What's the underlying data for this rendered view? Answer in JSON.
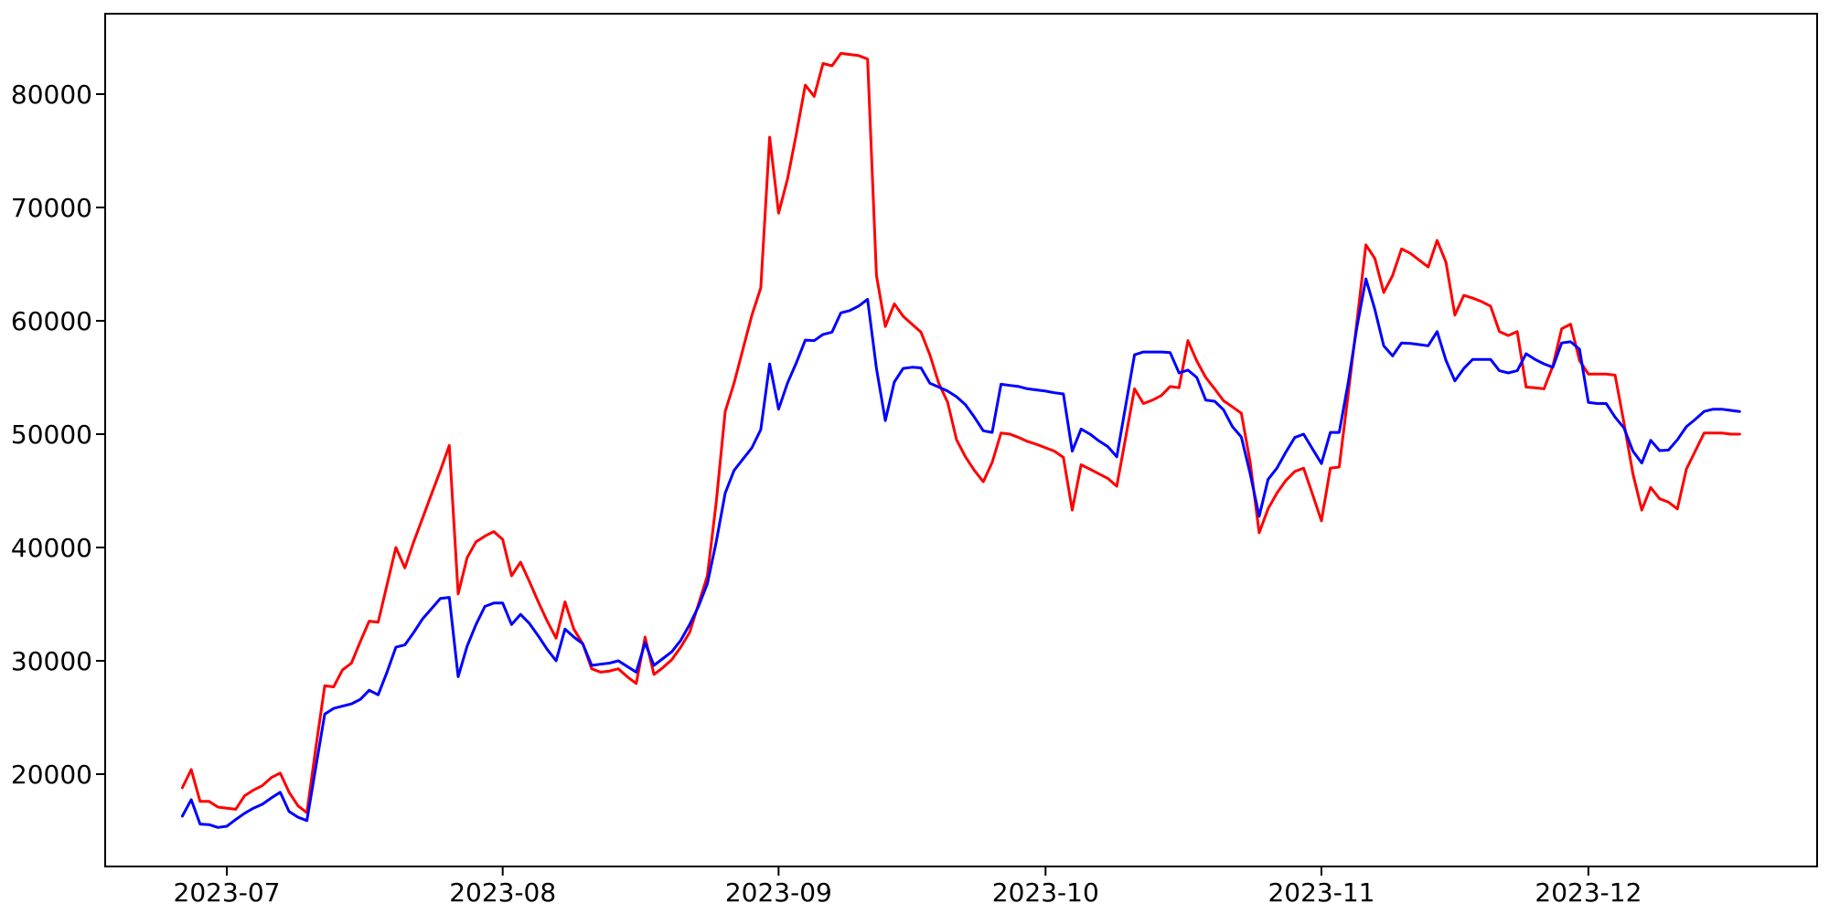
{
  "figure": {
    "background_color": "#ffffff",
    "spine_color": "#000000",
    "tick_label_color": "#000000"
  },
  "chart_data": {
    "type": "line",
    "title": "",
    "xlabel": "",
    "ylabel": "",
    "grid": false,
    "legend": "none",
    "x_start_date": "2023-06-26",
    "x_end_date": "2023-12-18",
    "x_frequency": "daily",
    "num_points": 176,
    "xlim_days_rel_start": [
      -8.67,
      183.7
    ],
    "ylim": [
      11855,
      87097
    ],
    "x_axis": {
      "tick_labels": [
        "2023-07",
        "2023-08",
        "2023-09",
        "2023-10",
        "2023-11",
        "2023-12"
      ],
      "tick_day_offsets": [
        5,
        36,
        67,
        97,
        128,
        158
      ]
    },
    "y_axis": {
      "tick_labels": [
        "20000",
        "30000",
        "40000",
        "50000",
        "60000",
        "70000",
        "80000"
      ],
      "tick_values": [
        20000,
        30000,
        40000,
        50000,
        60000,
        70000,
        80000
      ]
    },
    "series": [
      {
        "name": "red",
        "color": "#ff0000",
        "line_width": 3,
        "values": [
          18800,
          20400,
          17600,
          17600,
          17100,
          17000,
          16900,
          18100,
          18600,
          19000,
          19700,
          20100,
          18400,
          17200,
          16600,
          22300,
          27800,
          27700,
          29200,
          29800,
          31700,
          33500,
          33400,
          36700,
          40000,
          38200,
          40500,
          42600,
          44700,
          46800,
          49000,
          35900,
          39100,
          40500,
          41000,
          41400,
          40700,
          37500,
          38700,
          37000,
          35200,
          33500,
          32000,
          35200,
          32800,
          31500,
          29300,
          29000,
          29100,
          29300,
          28600,
          28000,
          32100,
          28800,
          29400,
          30100,
          31200,
          32500,
          35000,
          37500,
          44000,
          52000,
          54500,
          57500,
          60500,
          62900,
          76200,
          69500,
          72500,
          76500,
          80800,
          79800,
          82700,
          82500,
          83600,
          83500,
          83400,
          83100,
          64000,
          59500,
          61500,
          60400,
          59700,
          59000,
          57000,
          54500,
          52800,
          49500,
          48000,
          46800,
          45800,
          47500,
          50100,
          50000,
          49700,
          49350,
          49100,
          48800,
          48500,
          47950,
          43300,
          47300,
          46900,
          46500,
          46100,
          45400,
          49700,
          54000,
          52700,
          53000,
          53400,
          54200,
          54100,
          58250,
          56450,
          55000,
          54000,
          52950,
          52400,
          51850,
          47500,
          41300,
          43400,
          44800,
          45900,
          46700,
          47000,
          44700,
          42350,
          47000,
          47100,
          53500,
          60000,
          66700,
          65500,
          62500,
          64000,
          66350,
          65950,
          65350,
          64750,
          67100,
          65150,
          60500,
          62250,
          62000,
          61700,
          61300,
          59050,
          58700,
          59050,
          54150,
          54100,
          54000,
          56000,
          59300,
          59700,
          56500,
          55300,
          55300,
          55300,
          55200,
          51000,
          46500,
          43300,
          45300,
          44300,
          44000,
          43400,
          46900,
          48500,
          50100,
          50100,
          50100,
          50000,
          50000
        ]
      },
      {
        "name": "blue",
        "color": "#0000ff",
        "line_width": 3,
        "values": [
          16300,
          17750,
          15600,
          15550,
          15300,
          15400,
          16000,
          16550,
          17000,
          17350,
          17900,
          18400,
          16700,
          16200,
          15900,
          20600,
          25300,
          25800,
          26000,
          26200,
          26600,
          27400,
          27000,
          29000,
          31200,
          31400,
          32500,
          33700,
          34600,
          35500,
          35600,
          28600,
          31300,
          33200,
          34800,
          35100,
          35100,
          33200,
          34100,
          33300,
          32200,
          31000,
          30000,
          32800,
          32100,
          31500,
          29600,
          29700,
          29800,
          30000,
          29500,
          29000,
          31600,
          29600,
          30200,
          30800,
          31800,
          33200,
          34800,
          36800,
          40500,
          44800,
          46800,
          47800,
          48800,
          50400,
          56200,
          52200,
          54500,
          56300,
          58300,
          58250,
          58800,
          59000,
          60700,
          60900,
          61300,
          61900,
          55800,
          51200,
          54600,
          55800,
          55900,
          55850,
          54500,
          54150,
          53800,
          53300,
          52600,
          51500,
          50300,
          50150,
          54400,
          54300,
          54200,
          54000,
          53900,
          53800,
          53650,
          53550,
          48500,
          50450,
          50000,
          49400,
          48900,
          48000,
          52500,
          57000,
          57250,
          57250,
          57250,
          57200,
          55400,
          55650,
          55000,
          53000,
          52900,
          52150,
          50650,
          49750,
          46500,
          42750,
          46000,
          47000,
          48400,
          49700,
          50000,
          48700,
          47400,
          50150,
          50150,
          54500,
          59500,
          63700,
          61000,
          57800,
          56900,
          58050,
          58000,
          57900,
          57800,
          59050,
          56500,
          54700,
          55800,
          56600,
          56600,
          56600,
          55600,
          55400,
          55600,
          57100,
          56600,
          56200,
          55900,
          58050,
          58150,
          57500,
          52800,
          52700,
          52700,
          51500,
          50550,
          48500,
          47450,
          49450,
          48550,
          48600,
          49500,
          50650,
          51300,
          52000,
          52200,
          52200,
          52100,
          52000
        ]
      }
    ]
  }
}
